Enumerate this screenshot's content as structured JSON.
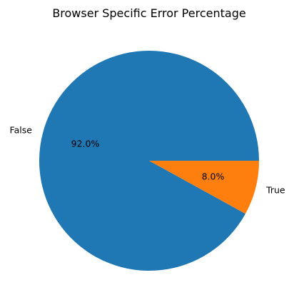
{
  "chart_data": {
    "type": "pie",
    "title": "Browser Specific Error Percentage",
    "categories": [
      "False",
      "True"
    ],
    "values": [
      92.0,
      8.0
    ],
    "percent_labels": [
      "92.0%",
      "8.0%"
    ],
    "colors": [
      "#1f77b4",
      "#ff7f0e"
    ],
    "start_angle_degrees": 0,
    "direction": "counterclockwise",
    "legend": "none"
  }
}
